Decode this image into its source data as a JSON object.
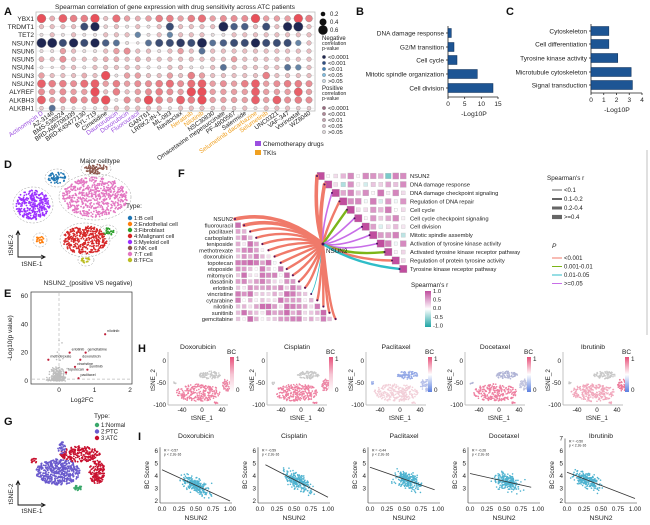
{
  "panel_labels": [
    "A",
    "B",
    "C",
    "D",
    "E",
    "F",
    "G",
    "H",
    "I"
  ],
  "chart_data": [
    {
      "id": "A",
      "type": "heatmap",
      "title": "Spearman correlation of gene expression with drug sensitivity across ATC patients",
      "rows": [
        "YBX1",
        "TRDMT1",
        "TET2",
        "NSUN7",
        "NSUN6",
        "NSUN5",
        "NSUN4",
        "NSUN3",
        "NSUN2",
        "ALYREF",
        "ALKBH3",
        "ALKBH1"
      ],
      "columns": [
        {
          "name": "Actinomycin D",
          "class": "chemo"
        },
        {
          "name": "AZ-3146",
          "class": "other"
        },
        {
          "name": "BMS-536924",
          "class": "other"
        },
        {
          "name": "BRD-A86708339",
          "class": "other"
        },
        {
          "name": "BRD-K49477130",
          "class": "other"
        },
        {
          "name": "BYL-719",
          "class": "other"
        },
        {
          "name": "Cimetidine",
          "class": "other"
        },
        {
          "name": "Daunorubicin",
          "class": "chemo"
        },
        {
          "name": "Doxorubicin",
          "class": "chemo"
        },
        {
          "name": "Fluorouracil",
          "class": "chemo"
        },
        {
          "name": "GANT61",
          "class": "other"
        },
        {
          "name": "LRRK2-IN-1",
          "class": "other"
        },
        {
          "name": "ML-083",
          "class": "other"
        },
        {
          "name": "Navitoclax",
          "class": "other"
        },
        {
          "name": "Neratinib",
          "class": "tki"
        },
        {
          "name": "Nilotinib",
          "class": "tki"
        },
        {
          "name": "NSC30830",
          "class": "other"
        },
        {
          "name": "Omacetaxine mepesuccinate",
          "class": "other"
        },
        {
          "name": "PF-4800567",
          "class": "other"
        },
        {
          "name": "Salermide",
          "class": "other"
        },
        {
          "name": "Selumetinib dacarbazine",
          "class": "tki"
        },
        {
          "name": "Selumetinib",
          "class": "tki"
        },
        {
          "name": "UNC0321",
          "class": "other"
        },
        {
          "name": "VAF-347",
          "class": "other"
        },
        {
          "name": "Vorinostat",
          "class": "other"
        },
        {
          "name": "WZ8040",
          "class": "other"
        }
      ],
      "values": [
        [
          0.55,
          0.25,
          0.5,
          0.4,
          0.4,
          0.55,
          0.2,
          0.45,
          0.3,
          0.25,
          0.3,
          0.4,
          0.4,
          0.3,
          0.4,
          0.45,
          0.3,
          0.35,
          0.35,
          0.35,
          0.55,
          0.3,
          0.3,
          0.3,
          0.55,
          0.4
        ],
        [
          0.2,
          0.2,
          0.2,
          0.2,
          -0.45,
          -0.55,
          0.15,
          0.2,
          0.1,
          0.2,
          0.1,
          0.2,
          -0.45,
          0.2,
          0.2,
          0.2,
          0.2,
          -0.6,
          -0.4,
          -0.4,
          0.2,
          -0.45,
          0.2,
          -0.55,
          -0.6,
          0.2
        ],
        [
          0.1,
          0.2,
          0.1,
          0.2,
          0.1,
          0.1,
          0.2,
          0.2,
          0.2,
          -0.3,
          0.1,
          0.2,
          -0.3,
          0.2,
          0.2,
          0.2,
          0.1,
          0.1,
          0.2,
          0.2,
          0.2,
          0.2,
          0.2,
          0.2,
          0.2,
          0.2
        ],
        [
          -0.6,
          -0.6,
          -0.45,
          -0.55,
          -0.45,
          -0.55,
          -0.4,
          -0.35,
          0.1,
          0.05,
          -0.35,
          -0.45,
          -0.45,
          -0.5,
          -0.45,
          -0.6,
          -0.35,
          -0.4,
          -0.45,
          -0.45,
          -0.55,
          -0.45,
          -0.45,
          -0.45,
          -0.3,
          0.2
        ],
        [
          0.1,
          0.1,
          0.3,
          0.2,
          0.1,
          0.1,
          0.2,
          0.3,
          0.35,
          0.2,
          0.2,
          0.1,
          0.2,
          0.3,
          0.2,
          -0.35,
          0.2,
          0.2,
          0.2,
          0.2,
          0.2,
          0.2,
          0.2,
          0.2,
          0.2,
          0.2
        ],
        [
          0.25,
          0.2,
          0.35,
          0.2,
          0.2,
          0.2,
          0.25,
          0.25,
          0.2,
          0.25,
          0.2,
          0.2,
          0.2,
          0.2,
          0.2,
          0.2,
          0.2,
          0.2,
          0.3,
          0.2,
          0.2,
          0.2,
          0.2,
          0.2,
          0.2,
          0.2
        ],
        [
          0.1,
          0.05,
          0.2,
          0.2,
          0.1,
          0.2,
          0.2,
          0.2,
          0.2,
          0.2,
          0.1,
          0.1,
          0.2,
          0.2,
          0.1,
          0.1,
          0.2,
          -0.35,
          0.2,
          0.2,
          0.2,
          0.2,
          0.2,
          -0.35,
          -0.3,
          0.2
        ],
        [
          0.3,
          0.2,
          0.2,
          0.2,
          0.25,
          0.2,
          0.55,
          0.1,
          0.3,
          0.3,
          0.2,
          0.2,
          0.3,
          0.2,
          0.4,
          0.3,
          0.2,
          0.2,
          0.2,
          0.2,
          0.2,
          0.4,
          0.2,
          0.2,
          0.2,
          0.2
        ],
        [
          0.5,
          0.4,
          0.4,
          0.35,
          0.45,
          0.5,
          0.3,
          0.4,
          0.3,
          0.35,
          0.35,
          0.4,
          0.45,
          0.35,
          0.45,
          0.5,
          0.3,
          0.35,
          0.3,
          0.4,
          0.5,
          0.3,
          0.35,
          0.4,
          0.4,
          0.35
        ],
        [
          0.35,
          0.3,
          0.35,
          0.3,
          0.3,
          0.55,
          0.2,
          0.4,
          0.2,
          0.3,
          0.35,
          0.4,
          0.35,
          0.3,
          0.55,
          0.55,
          0.3,
          0.3,
          0.3,
          0.3,
          0.5,
          0.3,
          0.3,
          0.3,
          0.5,
          0.3
        ],
        [
          0.5,
          0.3,
          0.35,
          0.4,
          0.35,
          0.45,
          0.55,
          0.1,
          0.35,
          0.3,
          0.55,
          0.4,
          0.3,
          0.5,
          0.4,
          0.55,
          0.3,
          0.3,
          0.3,
          0.3,
          0.5,
          0.3,
          0.5,
          0.35,
          0.4,
          0.35
        ],
        [
          0.15,
          -0.35,
          0.15,
          0.1,
          0.1,
          0.1,
          0.2,
          0.2,
          0.2,
          0.2,
          0.2,
          0.2,
          0.1,
          0.2,
          0.2,
          0.2,
          0.15,
          0.2,
          0.15,
          0.2,
          0.1,
          0.2,
          0.2,
          0.2,
          0.15,
          0.15
        ]
      ],
      "size_legend": [
        "0.2",
        "0.4",
        "0.6"
      ],
      "negative_legend": {
        "title": [
          "Negative",
          "correlation",
          "p-value"
        ],
        "items": [
          "<0.0001",
          "<0.001",
          "<0.01",
          "<0.05",
          ">0.05"
        ],
        "colors": [
          "#1f2752",
          "#2f4f86",
          "#3f7fb8",
          "#7fbde0",
          "#c9d6df"
        ]
      },
      "positive_legend": {
        "title": [
          "Positive",
          "correlation",
          "p-value"
        ],
        "items": [
          "<0.0001",
          "<0.001",
          "<0.01",
          "<0.05",
          ">0.05"
        ],
        "colors": [
          "#9a6a80",
          "#b08898",
          "#c2a4b0",
          "#d2c0c8",
          "#dcd6d8"
        ]
      },
      "class_legend": [
        {
          "label": "Chemotherapy drugs",
          "color": "#9b4fe0"
        },
        {
          "label": "TKIs",
          "color": "#f0a020"
        }
      ]
    },
    {
      "id": "B",
      "type": "bar",
      "orientation": "horizontal",
      "categories": [
        "DNA damage response",
        "G2/M transition",
        "Cell cycle",
        "Mitotic spindle organization",
        "Cell division"
      ],
      "values": [
        1.0,
        1.8,
        2.7,
        8.8,
        13.5
      ],
      "xlabel": "-Log10P",
      "xlim": [
        0,
        15
      ],
      "xticks": [
        "0",
        "5",
        "10",
        "15"
      ],
      "color": "#1d5594"
    },
    {
      "id": "C",
      "type": "bar",
      "orientation": "horizontal",
      "categories": [
        "Cytoskeleton",
        "Cell differentiation",
        "Tyrosine kinase activity",
        "Microtubule cytoskeleton",
        "Signal transduction"
      ],
      "values": [
        1.4,
        1.4,
        2.1,
        3.15,
        3.25
      ],
      "xlabel": "-Log10P",
      "xlim": [
        0,
        4
      ],
      "xticks": [
        "0",
        "1",
        "2",
        "3",
        "4"
      ],
      "color": "#1d5594"
    },
    {
      "id": "D",
      "type": "scatter",
      "title": "Major celltype",
      "xlabel": "tSNE-1",
      "ylabel": "tSNE-2",
      "legend_title": "Type:",
      "legend": [
        {
          "label": "1:B cell",
          "color": "#1f77b4"
        },
        {
          "label": "2:Endothelial cell",
          "color": "#ff7f0e"
        },
        {
          "label": "3:Fibroblast",
          "color": "#2ca02c"
        },
        {
          "label": "4:Malignant cell",
          "color": "#d62728"
        },
        {
          "label": "5:Myeloid cell",
          "color": "#9b30ff"
        },
        {
          "label": "6:NK cell",
          "color": "#8c564b"
        },
        {
          "label": "7:T cell",
          "color": "#e377c2"
        },
        {
          "label": "8:TFCs",
          "color": "#bcbd22"
        }
      ]
    },
    {
      "id": "E",
      "type": "scatter",
      "title": "NSUN2_(positive VS negative)",
      "xlabel": "Log2FC",
      "ylabel": "-Log10(p value)",
      "xlim": [
        -0.79,
        2.05
      ],
      "ylim": [
        -2,
        63
      ],
      "xticks": [
        0,
        1,
        2
      ],
      "yticks": [
        0,
        20,
        40,
        60
      ],
      "highlighted": [
        {
          "label": "nilotinib",
          "x": 1.3,
          "y": 33
        },
        {
          "label": "erlotinib",
          "x": 0.3,
          "y": 20
        },
        {
          "label": "gemcitabine",
          "x": 0.75,
          "y": 20
        },
        {
          "label": "doxorubicin",
          "x": 0.6,
          "y": 15
        },
        {
          "label": "methotrexate",
          "x": -0.3,
          "y": 15
        },
        {
          "label": "vincristine",
          "x": 0.45,
          "y": 10
        },
        {
          "label": "sunitinib",
          "x": 0.8,
          "y": 8
        },
        {
          "label": "topotecan",
          "x": 0.2,
          "y": 6
        },
        {
          "label": "paclitaxel",
          "x": 0.55,
          "y": 2
        }
      ]
    },
    {
      "id": "F",
      "type": "heatmap",
      "center_node": "NSUN2",
      "left_rows": [
        "NSUN2",
        "fluorouracil",
        "paclitaxel",
        "carboplatin",
        "teniposide",
        "methotrexate",
        "doxorubicin",
        "topotecan",
        "etoposide",
        "mitomycin",
        "dasatinib",
        "erlotinib",
        "vincristine",
        "cytarabine",
        "nilotinib",
        "sunitinib",
        "gemcitabine"
      ],
      "left_links_p": [
        "<0.001",
        "<0.001",
        "<0.001",
        "<0.001",
        "<0.001",
        "<0.001",
        "<0.001",
        "<0.001",
        "<0.001",
        "<0.001",
        "<0.001",
        "<0.001",
        "0.01-0.05",
        "<0.001",
        "<0.001",
        "<0.001",
        "<0.001"
      ],
      "left_links_r": [
        ">=0.4",
        ">=0.4",
        "0.2-0.4",
        "0.2-0.4",
        "0.2-0.4",
        "0.2-0.4",
        "0.2-0.4",
        "0.2-0.4",
        "0.2-0.4",
        "0.2-0.4",
        "0.2-0.4",
        "0.2-0.4",
        "<0.1",
        "0.2-0.4",
        "0.2-0.4",
        "0.2-0.4",
        "0.2-0.4"
      ],
      "right_rows": [
        "NSUN2",
        "DNA damage response",
        "DNA damage checkpoint signaling",
        "Regulation of DNA repair",
        "Cell cycle",
        "Cell cycle checkpoint signaling",
        "Cell division",
        "Mitotic spindle assembly",
        "Activation of tyrosine kinase activity",
        "Activated tyrosine kinase receptor pathway",
        "Regulation of protein tyrosine activity",
        "Tyrosine kinase receptor pathway"
      ],
      "right_links_p": [
        "<0.001",
        "<0.001",
        ">=0.05",
        "<0.001",
        "0.001-0.01",
        ">=0.05",
        ">=0.05",
        ">=0.05",
        ">=0.05",
        "0.001-0.01",
        "<0.001",
        "0.01-0.05"
      ],
      "right_links_r": [
        ">=0.4",
        ">=0.4",
        "0.1-0.2",
        "0.2-0.4",
        "0.2-0.4",
        "0.1-0.2",
        "0.1-0.2",
        "0.1-0.2",
        "0.1-0.2",
        "0.2-0.4",
        "0.2-0.4",
        "0.2-0.4"
      ],
      "colorbar_title": "Spearman's r",
      "colorbar_ticks": [
        "1.0",
        "0.5",
        "0.0",
        "-0.5",
        "-1.0"
      ],
      "colorbar_colors": [
        "#c04e9e",
        "#ffffff",
        "#1fa5a5"
      ],
      "width_legend": {
        "title": "Spearman's r",
        "items": [
          "<0.1",
          "0.1-0.2",
          "0.2-0.4",
          ">=0.4"
        ]
      },
      "p_legend": {
        "title": "P",
        "items": [
          {
            "label": "<0.001",
            "color": "#f07a6a"
          },
          {
            "label": "0.001-0.01",
            "color": "#7cb518"
          },
          {
            "label": "0.01-0.05",
            "color": "#2fbdc8"
          },
          {
            "label": ">=0.05",
            "color": "#c86ee8"
          }
        ]
      }
    },
    {
      "id": "G",
      "type": "scatter",
      "xlabel": "tSNE-1",
      "ylabel": "tSNE-2",
      "legend_title": "Type:",
      "legend": [
        {
          "label": "1:Normal",
          "color": "#3aa86b"
        },
        {
          "label": "2:PTC",
          "color": "#6a5acd"
        },
        {
          "label": "3:ATC",
          "color": "#c8102e"
        }
      ]
    },
    {
      "id": "H",
      "type": "scatter",
      "xlabel": "tSNE_1",
      "ylabel": "tSNE_2",
      "xticks": [
        "-40",
        "0",
        "40"
      ],
      "yticks": [
        "0",
        "-50",
        "-100"
      ],
      "colorbar_title": "BC",
      "colorbar_ticks": [
        "1",
        "0"
      ],
      "panels": [
        {
          "title": "Doxorubicin",
          "scale": "white-pink",
          "main": "#ee7fa0",
          "top": "#c8c8c8",
          "right": "#ec88a6"
        },
        {
          "title": "Cisplatin",
          "scale": "white-pink",
          "main": "#ee7fa0",
          "top": "#c8c8c8",
          "right": "#ec88a6"
        },
        {
          "title": "Paclitaxel",
          "scale": "blue-white-pink",
          "main": "#f2cfd8",
          "top": "#93a8e6",
          "right": "#b7c0ea"
        },
        {
          "title": "Docetaxel",
          "scale": "blue-white-pink",
          "main": "#ee7fa0",
          "top": "#b0b4d6",
          "right": "#c2c4de"
        },
        {
          "title": "Ibrutinib",
          "scale": "blue-white-pink",
          "main": "#f1a6bb",
          "top": "#c8c8c8",
          "right": "#ec7898"
        }
      ]
    },
    {
      "id": "I",
      "type": "scatter",
      "xlabel": "NSUN2",
      "ylabel": "BC Score",
      "xticks": [
        "0.0",
        "0.25",
        "0.50",
        "0.75",
        "1.00"
      ],
      "panels": [
        {
          "title": "Doxorubicin",
          "R": "R = -0.57",
          "p": "p < 2.2e-16",
          "fit": [
            [
              0,
              4.5
            ],
            [
              1,
              2.0
            ]
          ],
          "yticks": [
            "2",
            "3",
            "4",
            "5",
            "6"
          ],
          "ymax": 6.3,
          "xcenter": 0.5
        },
        {
          "title": "Cisplatin",
          "R": "R = -0.59",
          "p": "p < 2.2e-16",
          "fit": [
            [
              0.08,
              4.9
            ],
            [
              1,
              2.3
            ]
          ],
          "yticks": [
            "2",
            "3",
            "4",
            "5",
            "6"
          ],
          "ymax": 6.3,
          "xcenter": 0.55
        },
        {
          "title": "Paclitaxel",
          "R": "R = -0.44",
          "p": "p < 2.2e-16",
          "fit": [
            [
              0,
              4.7
            ],
            [
              0.95,
              2.9
            ]
          ],
          "yticks": [
            "3",
            "4",
            "5",
            "6"
          ],
          "ymax": 6.3,
          "xcenter": 0.55
        },
        {
          "title": "Docetaxel",
          "R": "R = -0.26",
          "p": "p < 2.2e-16",
          "fit": [
            [
              0,
              4.2
            ],
            [
              0.9,
              3.1
            ]
          ],
          "yticks": [
            "3",
            "4",
            "5",
            "6"
          ],
          "ymax": 6.3,
          "xcenter": 0.55
        },
        {
          "title": "Ibrutinib",
          "R": "R = -0.50",
          "p": "p < 2.2e-16",
          "fit": [
            [
              0,
              4.3
            ],
            [
              1,
              2.2
            ]
          ],
          "yticks": [
            "2",
            "3",
            "4",
            "5",
            "6",
            "7"
          ],
          "ymax": 7,
          "xcenter": 0.3
        }
      ]
    }
  ]
}
